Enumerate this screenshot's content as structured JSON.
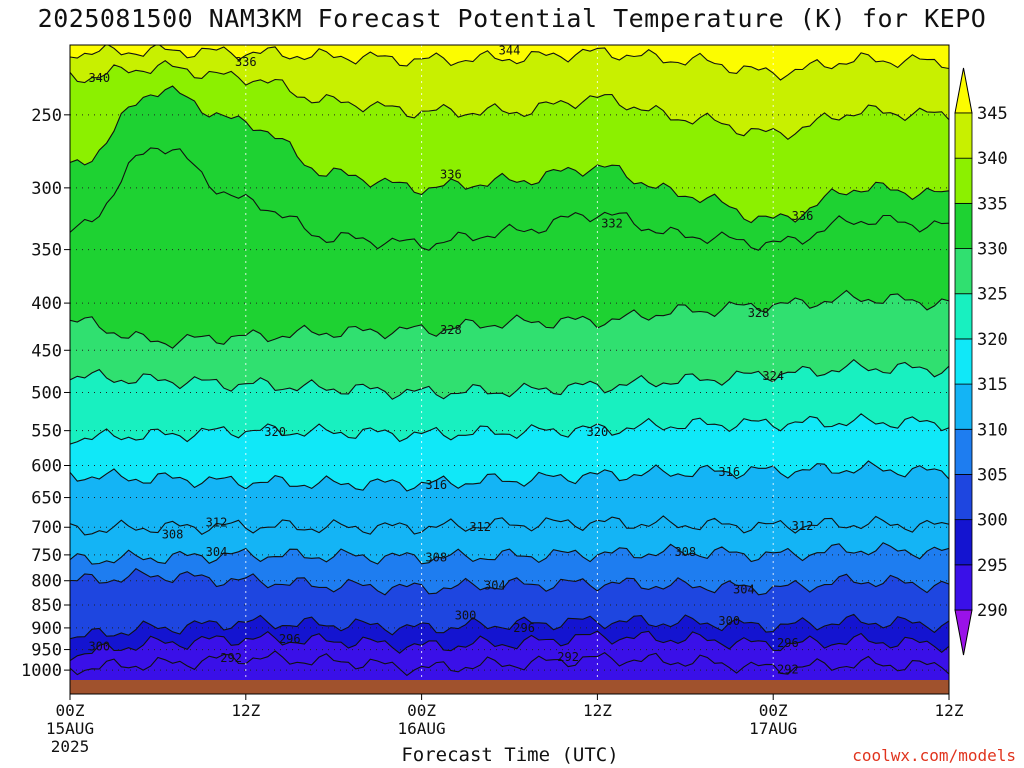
{
  "chart_data": {
    "type": "heatmap",
    "title": "2025081500 NAM3KM Forecast Potential Temperature (K) for KEPO",
    "xlabel": "Forecast Time (UTC)",
    "ylabel": "",
    "y_scale": "log",
    "y_ticks": [
      250,
      300,
      350,
      400,
      450,
      500,
      550,
      600,
      650,
      700,
      750,
      800,
      850,
      900,
      950,
      1000
    ],
    "y_range": [
      1025,
      210
    ],
    "x_range_hours": [
      0,
      60
    ],
    "x_ticks": [
      {
        "hour": 0,
        "lines": [
          "00Z",
          "15AUG",
          "2025"
        ]
      },
      {
        "hour": 12,
        "lines": [
          "12Z"
        ]
      },
      {
        "hour": 24,
        "lines": [
          "00Z",
          "16AUG"
        ]
      },
      {
        "hour": 36,
        "lines": [
          "12Z"
        ]
      },
      {
        "hour": 48,
        "lines": [
          "00Z",
          "17AUG"
        ]
      },
      {
        "hour": 60,
        "lines": [
          "12Z"
        ]
      }
    ],
    "grid": true,
    "colorbar": {
      "position": "right",
      "ticks": [
        290,
        295,
        300,
        305,
        310,
        315,
        320,
        325,
        330,
        335,
        340,
        345
      ],
      "colors": [
        "#9a12e8",
        "#3a10e8",
        "#1414d0",
        "#1e46e0",
        "#1e7df0",
        "#14b4f5",
        "#10e8f8",
        "#18f0c0",
        "#30e070",
        "#1ed232",
        "#8cf000",
        "#c8f000",
        "#fcfc00"
      ]
    },
    "contour_interval": 4,
    "isentrope_pressure": {
      "hours": [
        0,
        6,
        12,
        18,
        24,
        30,
        36,
        42,
        48,
        54,
        60
      ],
      "levels": [
        {
          "theta": 292,
          "p": [
            995,
            985,
            970,
            978,
            995,
            985,
            972,
            978,
            995,
            985,
            990
          ]
        },
        {
          "theta": 296,
          "p": [
            960,
            935,
            925,
            930,
            942,
            935,
            920,
            925,
            938,
            930,
            938
          ]
        },
        {
          "theta": 300,
          "p": [
            920,
            900,
            888,
            892,
            900,
            892,
            885,
            888,
            895,
            886,
            893
          ]
        },
        {
          "theta": 304,
          "p": [
            800,
            790,
            800,
            810,
            815,
            808,
            805,
            810,
            815,
            800,
            810
          ]
        },
        {
          "theta": 308,
          "p": [
            760,
            755,
            750,
            752,
            755,
            752,
            748,
            745,
            750,
            740,
            745
          ]
        },
        {
          "theta": 312,
          "p": [
            705,
            700,
            698,
            700,
            700,
            695,
            692,
            695,
            698,
            694,
            698
          ]
        },
        {
          "theta": 316,
          "p": [
            615,
            620,
            625,
            628,
            628,
            622,
            615,
            610,
            608,
            605,
            610
          ]
        },
        {
          "theta": 320,
          "p": [
            560,
            556,
            550,
            552,
            555,
            552,
            548,
            542,
            540,
            538,
            540
          ]
        },
        {
          "theta": 324,
          "p": [
            480,
            485,
            490,
            495,
            500,
            498,
            492,
            485,
            478,
            470,
            472
          ]
        },
        {
          "theta": 328,
          "p": [
            418,
            440,
            435,
            430,
            428,
            420,
            418,
            408,
            402,
            395,
            400
          ]
        },
        {
          "theta": 332,
          "p": [
            335,
            270,
            310,
            340,
            345,
            335,
            320,
            338,
            345,
            325,
            330
          ]
        },
        {
          "theta": 336,
          "p": [
            285,
            235,
            255,
            290,
            300,
            295,
            285,
            305,
            325,
            300,
            305
          ]
        },
        {
          "theta": 340,
          "p": [
            228,
            222,
            228,
            242,
            248,
            248,
            240,
            252,
            262,
            248,
            250
          ]
        },
        {
          "theta": 344,
          "p": [
            214,
            213,
            214,
            216,
            218,
            217,
            214,
            218,
            225,
            218,
            219
          ]
        }
      ]
    },
    "contour_labels": [
      {
        "text": "340",
        "hour": 2,
        "p": 228
      },
      {
        "text": "336",
        "hour": 12,
        "p": 219
      },
      {
        "text": "344",
        "hour": 30,
        "p": 213
      },
      {
        "text": "336",
        "hour": 26,
        "p": 290
      },
      {
        "text": "332",
        "hour": 37,
        "p": 328
      },
      {
        "text": "336",
        "hour": 50,
        "p": 322
      },
      {
        "text": "328",
        "hour": 26,
        "p": 428
      },
      {
        "text": "328",
        "hour": 47,
        "p": 410
      },
      {
        "text": "324",
        "hour": 48,
        "p": 480
      },
      {
        "text": "320",
        "hour": 14,
        "p": 552
      },
      {
        "text": "320",
        "hour": 36,
        "p": 552
      },
      {
        "text": "316",
        "hour": 45,
        "p": 610
      },
      {
        "text": "316",
        "hour": 25,
        "p": 630
      },
      {
        "text": "312",
        "hour": 10,
        "p": 692
      },
      {
        "text": "312",
        "hour": 28,
        "p": 700
      },
      {
        "text": "312",
        "hour": 50,
        "p": 698
      },
      {
        "text": "308",
        "hour": 7,
        "p": 713
      },
      {
        "text": "304",
        "hour": 10,
        "p": 745
      },
      {
        "text": "308",
        "hour": 25,
        "p": 755
      },
      {
        "text": "308",
        "hour": 42,
        "p": 745
      },
      {
        "text": "304",
        "hour": 29,
        "p": 810
      },
      {
        "text": "304",
        "hour": 46,
        "p": 818
      },
      {
        "text": "300",
        "hour": 27,
        "p": 873
      },
      {
        "text": "300",
        "hour": 45,
        "p": 885
      },
      {
        "text": "296",
        "hour": 31,
        "p": 900
      },
      {
        "text": "296",
        "hour": 49,
        "p": 935
      },
      {
        "text": "296",
        "hour": 15,
        "p": 925
      },
      {
        "text": "300",
        "hour": 2,
        "p": 943
      },
      {
        "text": "292",
        "hour": 11,
        "p": 970
      },
      {
        "text": "292",
        "hour": 34,
        "p": 968
      },
      {
        "text": "292",
        "hour": 49,
        "p": 998
      }
    ]
  },
  "footer": {
    "xtitle": "Forecast Time (UTC)",
    "credit": "coolwx.com/models"
  }
}
